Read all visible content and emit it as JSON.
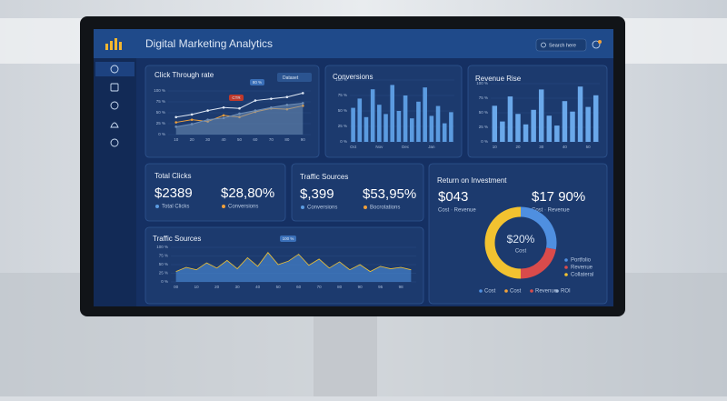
{
  "header": {
    "title": "Digital Marketing Analytics",
    "search": "Search here"
  },
  "ctr": {
    "title": "Click Through rate",
    "menu": "Dataset",
    "badges": [
      "80 %",
      "CTR"
    ],
    "categories": [
      "10",
      "20",
      "30",
      "40",
      "50",
      "60",
      "70",
      "80",
      "90"
    ],
    "ylim": [
      0,
      100
    ],
    "yticks": [
      {
        "value": 100,
        "label": "100 %"
      },
      {
        "value": 75,
        "label": "75 %"
      },
      {
        "value": 50,
        "label": "50 %"
      },
      {
        "value": 25,
        "label": "25 %"
      },
      {
        "value": 0,
        "label": "0 %"
      }
    ],
    "series": [
      {
        "color": "#dfe8f5",
        "values": [
          40,
          46,
          55,
          62,
          60,
          78,
          82,
          86,
          95
        ]
      },
      {
        "color": "#f0a03a",
        "values": [
          28,
          34,
          30,
          44,
          40,
          52,
          60,
          58,
          66
        ]
      },
      {
        "color": "#6f8fb8",
        "values": [
          18,
          24,
          34,
          38,
          48,
          55,
          62,
          68,
          72
        ]
      }
    ]
  },
  "conversions": {
    "title": "Conversions",
    "color": "#5b9be0",
    "categories": [
      "Oct",
      null,
      null,
      null,
      "Nov",
      null,
      null,
      null,
      "Dec",
      null,
      null,
      null,
      "Jan",
      null,
      null,
      null
    ],
    "values": [
      55,
      70,
      40,
      85,
      60,
      45,
      92,
      50,
      75,
      38,
      65,
      88,
      42,
      58,
      30,
      48
    ],
    "ylim": [
      0,
      100
    ],
    "yticks": [
      {
        "value": 100,
        "label": "100 %"
      },
      {
        "value": 75,
        "label": "75 %"
      },
      {
        "value": 50,
        "label": "50 %"
      },
      {
        "value": 25,
        "label": "25 %"
      },
      {
        "value": 0,
        "label": "0 %"
      }
    ]
  },
  "revenue": {
    "title": "Revenue Rise",
    "color": "#6aa8ea",
    "categories": [
      "10",
      null,
      null,
      "20",
      null,
      null,
      "30",
      null,
      null,
      "40",
      null,
      null,
      "50",
      null
    ],
    "values": [
      62,
      35,
      78,
      48,
      30,
      55,
      90,
      45,
      28,
      70,
      52,
      95,
      60,
      80
    ],
    "ylim": [
      0,
      100
    ],
    "yticks": [
      {
        "value": 100,
        "label": "100 %"
      },
      {
        "value": 75,
        "label": "75 %"
      },
      {
        "value": 50,
        "label": "50 %"
      },
      {
        "value": 25,
        "label": "25 %"
      },
      {
        "value": 0,
        "label": "0 %"
      }
    ]
  },
  "total_clicks": {
    "title": "Total Clicks",
    "kpis": [
      {
        "value": "$2389",
        "label": "Total Clicks",
        "dot": "#5b9be0"
      },
      {
        "value": "$28,80%",
        "label": "Conversions",
        "dot": "#f0a03a"
      }
    ]
  },
  "traffic_kpi": {
    "title": "Traffic Sources",
    "kpis": [
      {
        "value": "$,399",
        "label": "Conversions",
        "dot": "#5b9be0"
      },
      {
        "value": "$53,95%",
        "label": "Bocrotations",
        "dot": "#f0a03a"
      }
    ]
  },
  "roi": {
    "title": "Return on Investment",
    "kpis": [
      {
        "value": "$043",
        "label": "Cost · Revenue"
      },
      {
        "value": "$17 90%",
        "label": "Cost · Revenue"
      }
    ],
    "center": "$20%",
    "center_label": "Cost",
    "slices": [
      {
        "name": "Portfolio",
        "color": "#4f8fe0",
        "value": 28
      },
      {
        "name": "Revenue",
        "color": "#d94b4b",
        "value": 22
      },
      {
        "name": "Collateral",
        "color": "#f2c230",
        "value": 50
      }
    ],
    "legend": [
      {
        "name": "Cost",
        "color": "#4f8fe0"
      },
      {
        "name": "Cost",
        "color": "#f0a03a"
      },
      {
        "name": "Revenue",
        "color": "#d94b4b"
      },
      {
        "name": "ROI",
        "color": "#9fb7d8"
      }
    ]
  },
  "traffic": {
    "title": "Traffic Sources",
    "badge": "100 %",
    "color": "#4c8fdc",
    "categories": [
      "00",
      null,
      "10",
      null,
      "20",
      null,
      "30",
      null,
      "40",
      null,
      "50",
      null,
      "60",
      null,
      "70",
      null,
      "80",
      null,
      "90",
      null,
      "95",
      null,
      "98",
      null
    ],
    "values": [
      30,
      42,
      35,
      55,
      40,
      62,
      38,
      70,
      45,
      85,
      50,
      60,
      80,
      48,
      66,
      40,
      58,
      35,
      50,
      30,
      45,
      38,
      42,
      35
    ],
    "ylim": [
      0,
      100
    ],
    "yticks": [
      {
        "value": 100,
        "label": "100 %"
      },
      {
        "value": 75,
        "label": "75 %"
      },
      {
        "value": 50,
        "label": "50 %"
      },
      {
        "value": 25,
        "label": "25 %"
      },
      {
        "value": 0,
        "label": "0 %"
      }
    ]
  }
}
